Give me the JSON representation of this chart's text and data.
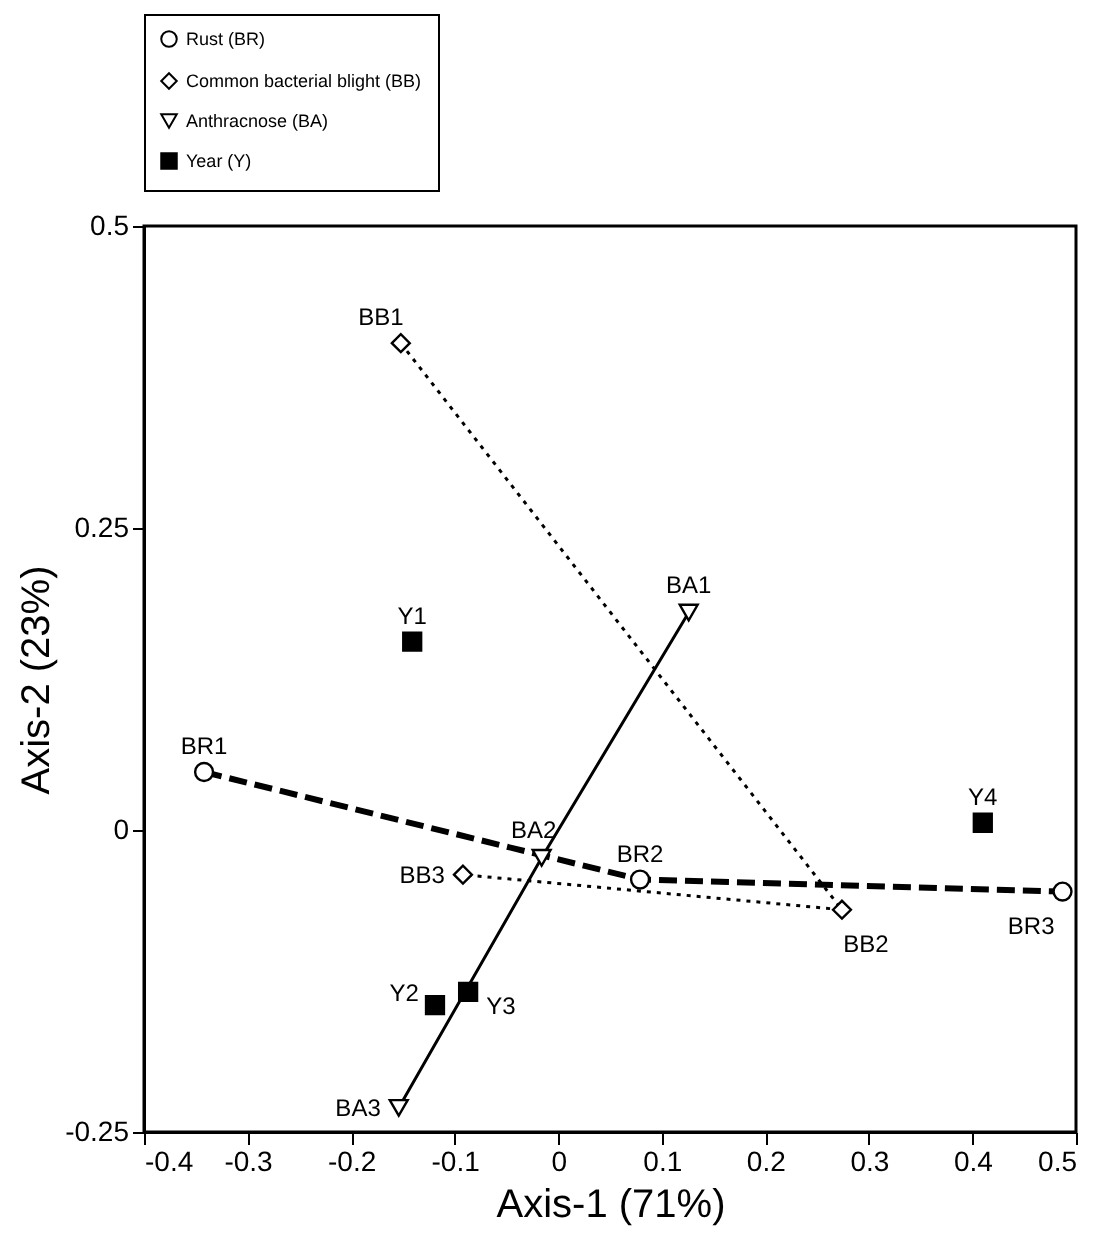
{
  "chart_data": {
    "type": "scatter",
    "xlabel": "Axis-1 (71%)",
    "ylabel": "Axis-2 (23%)",
    "xlim": [
      -0.4,
      0.5
    ],
    "xticks": [
      -0.4,
      -0.3,
      -0.2,
      -0.1,
      0,
      0.1,
      0.2,
      0.3,
      0.4,
      0.5
    ],
    "ylim": [
      -0.25,
      0.5
    ],
    "yticks": [
      -0.25,
      0,
      0.25,
      0.5
    ],
    "grid": false,
    "legend": "top",
    "series": [
      {
        "name": "Rust (BR)",
        "type": "line",
        "color": "#000000",
        "marker": "circle",
        "line_style": "dashed",
        "x": [
          -0.342,
          0.079,
          0.487
        ],
        "values": [
          0.048,
          -0.041,
          -0.051
        ]
      },
      {
        "name": "Common bacterial blight (BB)",
        "type": "line",
        "color": "#000000",
        "marker": "diamond",
        "line_style": "dotted",
        "x": [
          -0.152,
          0.274,
          -0.092
        ],
        "values": [
          0.403,
          -0.066,
          -0.037
        ]
      },
      {
        "name": "Anthracnose (BA)",
        "type": "line",
        "color": "#000000",
        "marker": "triangle",
        "line_style": "solid",
        "x": [
          0.126,
          -0.016,
          -0.154
        ],
        "values": [
          0.18,
          -0.023,
          -0.23
        ]
      },
      {
        "name": "Year (Y)",
        "type": "scatter",
        "color": "#000000",
        "marker": "square",
        "x": [
          -0.141,
          -0.119,
          -0.087,
          0.41
        ],
        "values": [
          0.156,
          -0.145,
          -0.134,
          0.006
        ]
      }
    ],
    "annotations": [
      {
        "text": "BR1",
        "x": -0.342,
        "y": 0.048
      },
      {
        "text": "BR2",
        "x": 0.079,
        "y": -0.041
      },
      {
        "text": "BR3",
        "x": 0.487,
        "y": -0.051
      },
      {
        "text": "BB1",
        "x": -0.152,
        "y": 0.403
      },
      {
        "text": "BB2",
        "x": 0.274,
        "y": -0.066
      },
      {
        "text": "BB3",
        "x": -0.092,
        "y": -0.037
      },
      {
        "text": "BA1",
        "x": 0.126,
        "y": 0.18
      },
      {
        "text": "BA2",
        "x": -0.016,
        "y": -0.023
      },
      {
        "text": "BA3",
        "x": -0.154,
        "y": -0.23
      },
      {
        "text": "Y1",
        "x": -0.141,
        "y": 0.156
      },
      {
        "text": "Y2",
        "x": -0.119,
        "y": -0.145
      },
      {
        "text": "Y3",
        "x": -0.087,
        "y": -0.134
      },
      {
        "text": "Y4",
        "x": 0.41,
        "y": 0.006
      }
    ]
  }
}
